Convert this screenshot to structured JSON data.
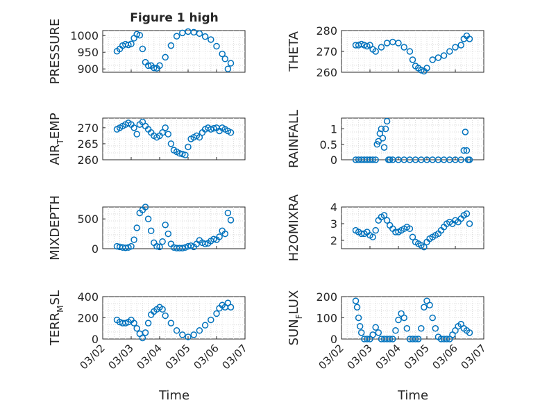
{
  "figure": {
    "title": "Figure 1 high",
    "marker_color": "#0072BD",
    "x_tick_labels": [
      "03/02",
      "03/03",
      "03/04",
      "03/05",
      "03/06",
      "03/07"
    ],
    "x_axis_label": "Time"
  },
  "chart_data": [
    {
      "type": "scatter",
      "panel": "pressure",
      "ylabel": "PRESSURE",
      "ylabel_sub": "",
      "xlim": [
        0,
        5
      ],
      "ylim": [
        890,
        1015
      ],
      "yticks": [
        900,
        950,
        1000
      ],
      "x": [
        0.5,
        0.6,
        0.7,
        0.8,
        0.9,
        1.0,
        1.1,
        1.2,
        1.3,
        1.4,
        1.5,
        1.6,
        1.7,
        1.8,
        1.9,
        2.0,
        2.2,
        2.4,
        2.6,
        2.8,
        3.0,
        3.2,
        3.4,
        3.6,
        3.8,
        4.0,
        4.2,
        4.3,
        4.4,
        4.5
      ],
      "y": [
        953,
        960,
        970,
        974,
        972,
        975,
        992,
        1004,
        1001,
        960,
        920,
        910,
        910,
        903,
        902,
        910,
        935,
        970,
        998,
        1008,
        1012,
        1010,
        1006,
        997,
        988,
        968,
        945,
        930,
        900,
        917
      ]
    },
    {
      "type": "scatter",
      "panel": "theta",
      "ylabel": "THETA",
      "ylabel_sub": "",
      "xlim": [
        0,
        5
      ],
      "ylim": [
        260,
        280
      ],
      "yticks": [
        260,
        270,
        280
      ],
      "x": [
        0.5,
        0.6,
        0.7,
        0.8,
        0.9,
        1.0,
        1.1,
        1.2,
        1.4,
        1.6,
        1.8,
        2.0,
        2.2,
        2.4,
        2.5,
        2.6,
        2.7,
        2.8,
        2.9,
        3.0,
        3.2,
        3.4,
        3.6,
        3.8,
        4.0,
        4.2,
        4.3,
        4.4,
        4.5
      ],
      "y": [
        273,
        273,
        273.5,
        273,
        272.5,
        273,
        271,
        270,
        272,
        274,
        274.5,
        274,
        272,
        270,
        266,
        263,
        262,
        261,
        260.5,
        262,
        266,
        267,
        268,
        270,
        272,
        273,
        276,
        277.5,
        276
      ]
    },
    {
      "type": "scatter",
      "panel": "air_temp",
      "ylabel": "AIR",
      "ylabel_sub": "T",
      "ylabel_suffix": "EMP",
      "xlim": [
        0,
        5
      ],
      "ylim": [
        260,
        273
      ],
      "yticks": [
        260,
        265,
        270
      ],
      "x": [
        0.5,
        0.6,
        0.7,
        0.8,
        0.9,
        1.0,
        1.1,
        1.2,
        1.3,
        1.4,
        1.5,
        1.6,
        1.7,
        1.8,
        1.9,
        2.0,
        2.1,
        2.2,
        2.3,
        2.4,
        2.5,
        2.6,
        2.7,
        2.8,
        2.9,
        3.0,
        3.1,
        3.2,
        3.3,
        3.4,
        3.5,
        3.6,
        3.7,
        3.8,
        3.9,
        4.0,
        4.1,
        4.2,
        4.3,
        4.4,
        4.5
      ],
      "y": [
        269.5,
        270,
        270.5,
        271,
        271.5,
        271,
        270,
        268,
        271,
        271.8,
        270.5,
        269.5,
        268.5,
        267.5,
        267,
        267.5,
        268.5,
        270,
        268,
        265,
        263,
        262.5,
        262,
        261.8,
        261.5,
        264,
        266.5,
        267,
        267.5,
        267,
        268.5,
        269.5,
        270,
        269.5,
        269.8,
        270,
        269,
        270,
        269.5,
        269,
        268.5
      ]
    },
    {
      "type": "scatter",
      "panel": "rainfall",
      "ylabel": "RAINFALL",
      "ylabel_sub": "",
      "xlim": [
        0,
        5
      ],
      "ylim": [
        0,
        1.35
      ],
      "yticks": [
        0,
        0.5,
        1
      ],
      "ytick_labels": [
        "0",
        "0.5",
        "1"
      ],
      "x": [
        0.5,
        0.6,
        0.7,
        0.8,
        0.9,
        1.0,
        1.1,
        1.2,
        1.25,
        1.3,
        1.35,
        1.4,
        1.45,
        1.5,
        1.55,
        1.6,
        1.65,
        1.7,
        1.8,
        2.0,
        2.2,
        2.4,
        2.6,
        2.8,
        3.0,
        3.2,
        3.4,
        3.6,
        3.8,
        4.0,
        4.2,
        4.3,
        4.35,
        4.4,
        4.45,
        4.5
      ],
      "y": [
        0,
        0,
        0,
        0,
        0,
        0,
        0,
        0,
        0.5,
        0.6,
        0.85,
        1.0,
        0.7,
        0.4,
        1.0,
        1.25,
        0,
        0,
        0,
        0,
        0,
        0,
        0,
        0,
        0,
        0,
        0,
        0,
        0,
        0,
        0,
        0.3,
        0.9,
        0.3,
        0,
        0
      ]
    },
    {
      "type": "scatter",
      "panel": "mixdepth",
      "ylabel": "MIXDEPTH",
      "ylabel_sub": "",
      "xlim": [
        0,
        5
      ],
      "ylim": [
        0,
        700
      ],
      "yticks": [
        0,
        500
      ],
      "x": [
        0.5,
        0.6,
        0.7,
        0.8,
        0.9,
        1.0,
        1.1,
        1.2,
        1.3,
        1.4,
        1.5,
        1.6,
        1.7,
        1.8,
        1.9,
        2.0,
        2.1,
        2.2,
        2.3,
        2.4,
        2.5,
        2.6,
        2.7,
        2.8,
        2.9,
        3.0,
        3.1,
        3.2,
        3.3,
        3.4,
        3.5,
        3.6,
        3.7,
        3.8,
        3.9,
        4.0,
        4.1,
        4.2,
        4.3,
        4.4,
        4.5
      ],
      "y": [
        40,
        30,
        20,
        15,
        20,
        40,
        150,
        350,
        600,
        650,
        700,
        500,
        300,
        100,
        40,
        30,
        120,
        400,
        250,
        80,
        20,
        10,
        10,
        10,
        20,
        40,
        50,
        30,
        80,
        140,
        100,
        80,
        90,
        130,
        160,
        150,
        200,
        300,
        250,
        600,
        480
      ]
    },
    {
      "type": "scatter",
      "panel": "h2omixra",
      "ylabel": "H2OMIXRA",
      "ylabel_sub": "",
      "xlim": [
        0,
        5
      ],
      "ylim": [
        1.5,
        4
      ],
      "yticks": [
        2,
        3,
        4
      ],
      "x": [
        0.5,
        0.6,
        0.7,
        0.8,
        0.9,
        1.0,
        1.1,
        1.2,
        1.3,
        1.4,
        1.5,
        1.6,
        1.7,
        1.8,
        1.9,
        2.0,
        2.1,
        2.2,
        2.3,
        2.4,
        2.5,
        2.6,
        2.7,
        2.8,
        2.9,
        3.0,
        3.1,
        3.2,
        3.3,
        3.4,
        3.5,
        3.6,
        3.7,
        3.8,
        3.9,
        4.0,
        4.1,
        4.2,
        4.3,
        4.4,
        4.5
      ],
      "y": [
        2.6,
        2.5,
        2.4,
        2.4,
        2.5,
        2.3,
        2.2,
        2.6,
        3.2,
        3.4,
        3.5,
        3.2,
        2.9,
        2.7,
        2.5,
        2.5,
        2.6,
        2.7,
        2.8,
        2.7,
        2.2,
        1.9,
        1.8,
        1.7,
        1.6,
        1.9,
        2.1,
        2.2,
        2.3,
        2.4,
        2.6,
        2.8,
        3.0,
        3.1,
        3.0,
        3.2,
        3.1,
        3.3,
        3.5,
        3.6,
        3.0
      ]
    },
    {
      "type": "scatter",
      "panel": "terrmsl",
      "ylabel": "TERR",
      "ylabel_sub": "M",
      "ylabel_suffix": "SL",
      "xlim": [
        0,
        5
      ],
      "ylim": [
        0,
        400
      ],
      "yticks": [
        0,
        200,
        400
      ],
      "x": [
        0.5,
        0.6,
        0.7,
        0.8,
        0.9,
        1.0,
        1.1,
        1.2,
        1.3,
        1.4,
        1.5,
        1.6,
        1.7,
        1.8,
        1.9,
        2.0,
        2.1,
        2.2,
        2.4,
        2.6,
        2.8,
        3.0,
        3.2,
        3.4,
        3.6,
        3.8,
        4.0,
        4.1,
        4.2,
        4.3,
        4.4,
        4.5
      ],
      "y": [
        180,
        160,
        150,
        150,
        160,
        180,
        150,
        100,
        50,
        10,
        60,
        150,
        230,
        260,
        280,
        300,
        280,
        220,
        150,
        80,
        40,
        20,
        40,
        80,
        130,
        180,
        240,
        290,
        320,
        300,
        340,
        300
      ]
    },
    {
      "type": "scatter",
      "panel": "sunflux",
      "ylabel": "SUN",
      "ylabel_sub": "F",
      "ylabel_suffix": "LUX",
      "xlim": [
        0,
        5
      ],
      "ylim": [
        0,
        200
      ],
      "yticks": [
        0,
        100,
        200
      ],
      "x": [
        0.5,
        0.55,
        0.6,
        0.65,
        0.7,
        0.8,
        0.9,
        1.0,
        1.1,
        1.2,
        1.3,
        1.4,
        1.5,
        1.6,
        1.7,
        1.8,
        1.9,
        2.0,
        2.1,
        2.2,
        2.3,
        2.4,
        2.5,
        2.6,
        2.7,
        2.8,
        2.9,
        3.0,
        3.1,
        3.2,
        3.3,
        3.4,
        3.5,
        3.6,
        3.7,
        3.8,
        3.9,
        4.0,
        4.1,
        4.2,
        4.3,
        4.4,
        4.5
      ],
      "y": [
        180,
        150,
        100,
        60,
        30,
        0,
        0,
        0,
        20,
        55,
        30,
        0,
        0,
        0,
        0,
        0,
        40,
        90,
        120,
        100,
        50,
        0,
        0,
        0,
        0,
        50,
        150,
        180,
        160,
        100,
        50,
        10,
        0,
        0,
        0,
        0,
        20,
        40,
        60,
        70,
        50,
        40,
        30
      ]
    }
  ]
}
